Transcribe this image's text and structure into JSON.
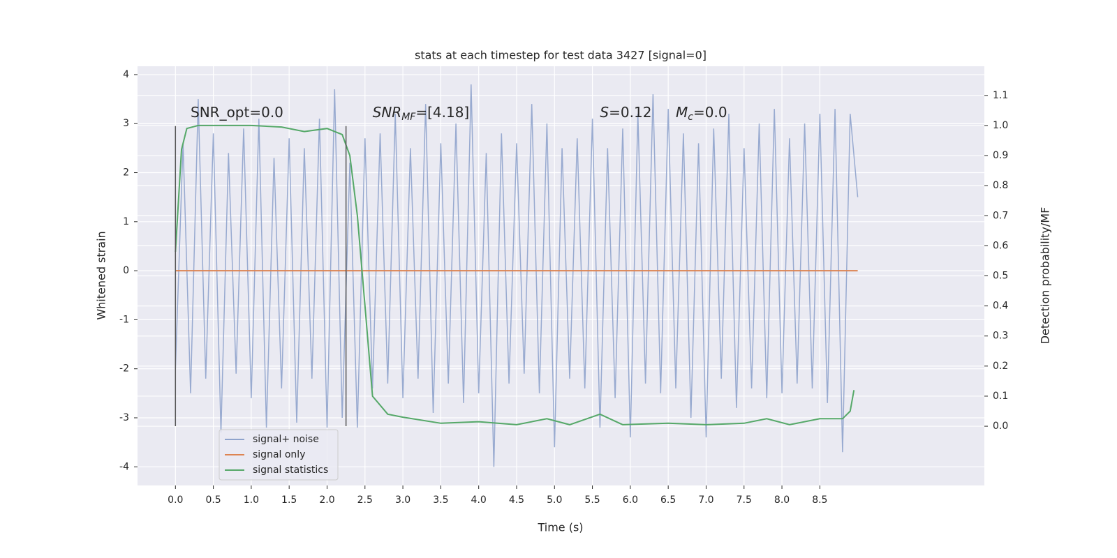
{
  "chart_data": {
    "type": "line",
    "title": "stats at each timestep for test data 3427 [signal=0]",
    "xlabel": "Time (s)",
    "ylabel": "Whitened strain",
    "y2label": "Detection probability/MF",
    "xlim": [
      -0.5,
      10.67
    ],
    "ylim": [
      -4.38,
      4.17
    ],
    "y2lim": [
      -0.197,
      1.197
    ],
    "xticks": [
      {
        "value": 0,
        "label": "0.0"
      },
      0.5,
      {
        "value": 1,
        "label": "1.0"
      },
      1.5,
      {
        "value": 2,
        "label": "2.0"
      },
      2.5,
      {
        "value": 3,
        "label": "3.0"
      },
      3.5,
      {
        "value": 4,
        "label": "4.0"
      },
      4.5,
      {
        "value": 5,
        "label": "5.0"
      },
      5.5,
      {
        "value": 6,
        "label": "6.0"
      },
      6.5,
      {
        "value": 7,
        "label": "7.0"
      },
      7.5,
      {
        "value": 8,
        "label": "8.0"
      },
      8.5
    ],
    "yticks": [
      -4,
      -3,
      -2,
      -1,
      0,
      1,
      2,
      3,
      4
    ],
    "y2ticks": [
      {
        "value": 0,
        "label": "0.0"
      },
      0.1,
      0.2,
      0.3,
      0.4,
      0.5,
      0.6,
      0.7,
      0.8,
      0.9,
      {
        "value": 1,
        "label": "1.0"
      },
      1.1
    ],
    "grid": true,
    "legend": "lower left",
    "vlines": [
      0,
      2.25
    ],
    "vline_range": [
      -3.17,
      2.95
    ],
    "vline_color": "#555555",
    "annotations": [
      {
        "main": "SNR_opt=0.0",
        "x": 0.2
      },
      {
        "main": "SNR",
        "sub": "MF",
        "rest": "=[4.18]",
        "x": 2.6
      },
      {
        "main": "S",
        "rest": "=0.12",
        "x": 5.6
      },
      {
        "main": "M",
        "sub": "c",
        "rest": "=0.0",
        "x": 6.6
      }
    ],
    "annotation_y": 3.0,
    "series": [
      {
        "name": "signal+ noise",
        "color": "#8fa3cc",
        "x": [
          0,
          0.1,
          0.2,
          0.3,
          0.4,
          0.5,
          0.6,
          0.7,
          0.8,
          0.9,
          1,
          1.1,
          1.2,
          1.3,
          1.4,
          1.5,
          1.6,
          1.7,
          1.8,
          1.9,
          2,
          2.1,
          2.2,
          2.3,
          2.4,
          2.5,
          2.6,
          2.7,
          2.8,
          2.9,
          3,
          3.1,
          3.2,
          3.3,
          3.4,
          3.5,
          3.6,
          3.7,
          3.8,
          3.9,
          4,
          4.1,
          4.2,
          4.3,
          4.4,
          4.5,
          4.6,
          4.7,
          4.8,
          4.9,
          5,
          5.1,
          5.2,
          5.3,
          5.4,
          5.5,
          5.6,
          5.7,
          5.8,
          5.9,
          6,
          6.1,
          6.2,
          6.3,
          6.4,
          6.5,
          6.6,
          6.7,
          6.8,
          6.9,
          7,
          7.1,
          7.2,
          7.3,
          7.4,
          7.5,
          7.6,
          7.7,
          7.8,
          7.9,
          8,
          8.1,
          8.2,
          8.3,
          8.4,
          8.5,
          8.6,
          8.7,
          8.8,
          8.9,
          9
        ],
        "values": [
          -2,
          2.6,
          -2.5,
          3.5,
          -2.2,
          2.8,
          -3.3,
          2.4,
          -2.1,
          2.9,
          -2.6,
          3.1,
          -3.2,
          2.3,
          -2.4,
          2.7,
          -3.1,
          2.5,
          -2.2,
          3.1,
          -3.2,
          3.7,
          -3,
          2.2,
          -3.2,
          2.7,
          -2.4,
          2.8,
          -2.3,
          3.2,
          -2.6,
          2.5,
          -2.2,
          3.4,
          -2.9,
          2.6,
          -2.3,
          3,
          -2.7,
          3.8,
          -2.5,
          2.4,
          -4,
          2.8,
          -2.3,
          2.6,
          -2.1,
          3.4,
          -2.5,
          3,
          -3.6,
          2.5,
          -2.2,
          2.7,
          -2.4,
          3.1,
          -3.2,
          2.5,
          -2.6,
          2.9,
          -3.4,
          3.2,
          -2.3,
          3.6,
          -2.5,
          3.3,
          -2.4,
          2.8,
          -3,
          2.6,
          -3.4,
          2.9,
          -2.2,
          3.2,
          -2.8,
          2.5,
          -2.4,
          3,
          -2.6,
          3.3,
          -2.5,
          2.7,
          -2.3,
          3,
          -2.4,
          3.2,
          -2.7,
          3.3,
          -3.7,
          3.2,
          1.5
        ]
      },
      {
        "name": "signal only",
        "color": "#dd8452",
        "x": [
          0,
          9
        ],
        "values": [
          0,
          0
        ]
      },
      {
        "name": "signal statistics",
        "color": "#55a868",
        "axis": "y2",
        "x": [
          0,
          0.08,
          0.15,
          0.3,
          1,
          1.4,
          1.7,
          2,
          2.2,
          2.3,
          2.4,
          2.5,
          2.6,
          2.8,
          3,
          3.5,
          4,
          4.5,
          4.9,
          5.2,
          5.6,
          5.9,
          6.5,
          7,
          7.5,
          7.8,
          8.1,
          8.5,
          8.8,
          8.9,
          8.95
        ],
        "values": [
          0.58,
          0.92,
          0.99,
          1,
          1,
          0.995,
          0.98,
          0.99,
          0.97,
          0.9,
          0.7,
          0.4,
          0.1,
          0.04,
          0.03,
          0.01,
          0.015,
          0.005,
          0.025,
          0.005,
          0.04,
          0.005,
          0.01,
          0.005,
          0.01,
          0.025,
          0.005,
          0.025,
          0.025,
          0.05,
          0.12
        ]
      }
    ]
  }
}
